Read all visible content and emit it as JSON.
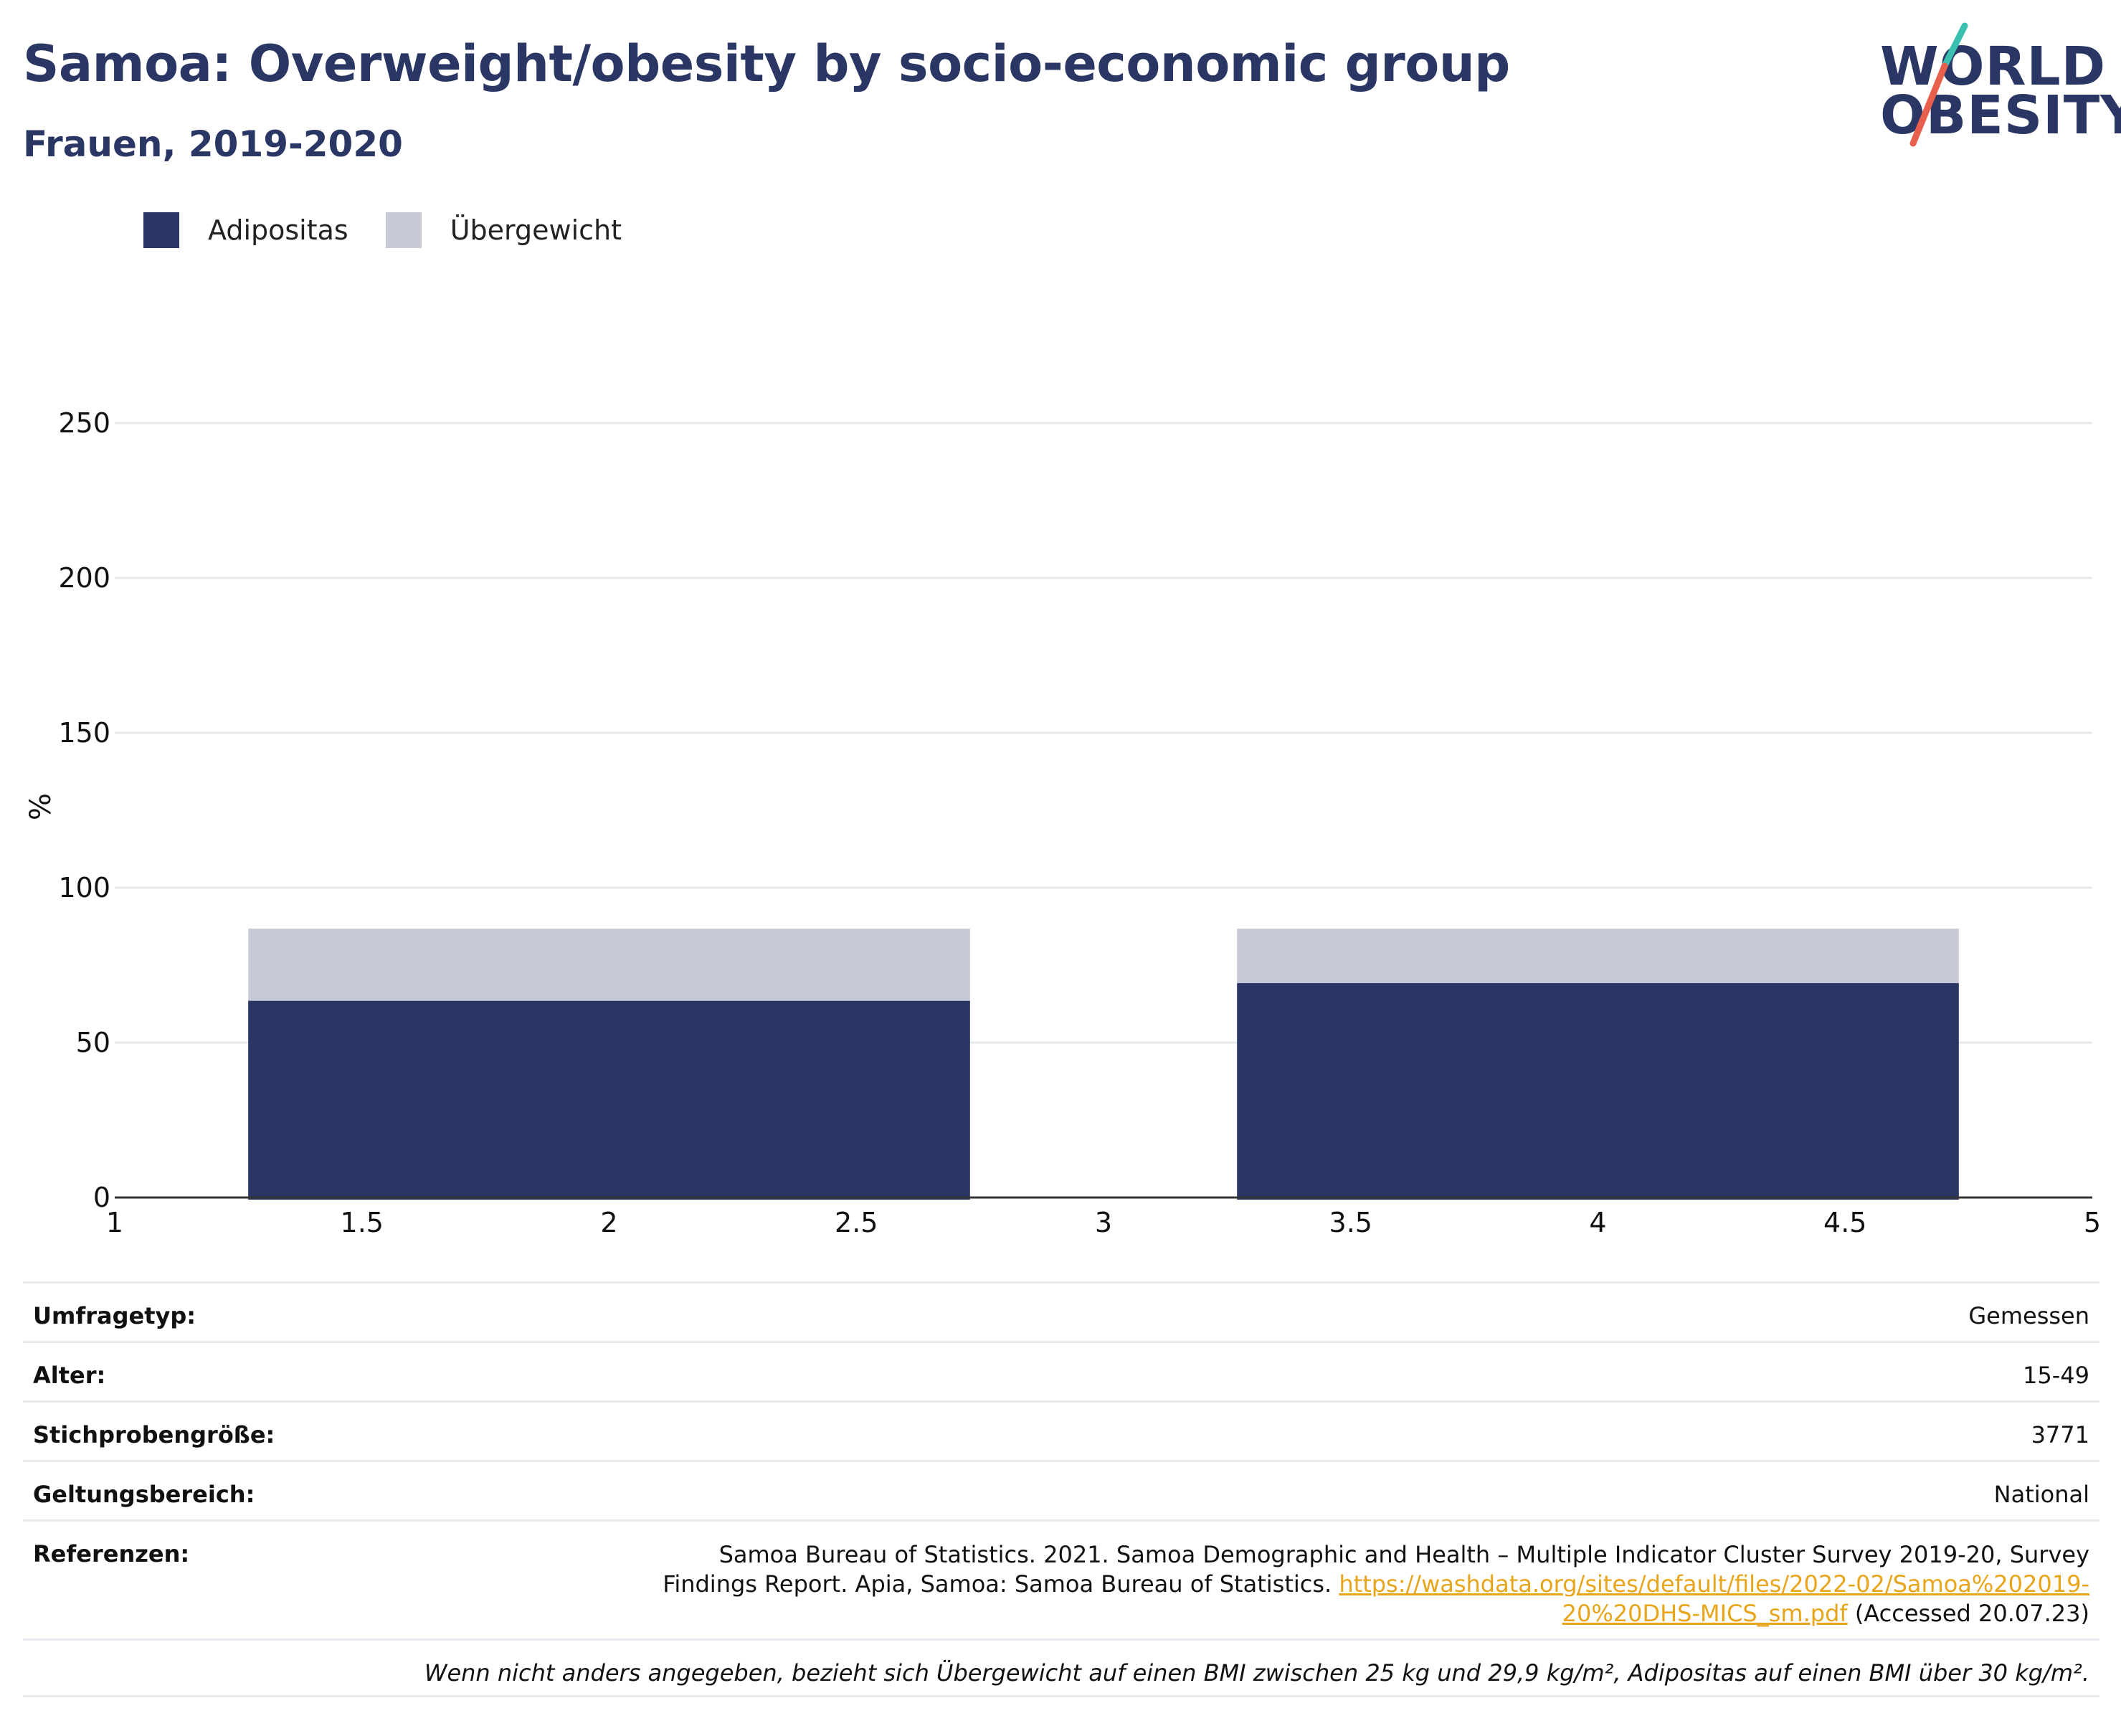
{
  "header": {
    "title": "Samoa: Overweight/obesity by socio-economic group",
    "subtitle": "Frauen, 2019-2020"
  },
  "logo": {
    "line1": "WORLD",
    "line2": "OBESITY",
    "slash_colors": [
      "#3bbfb0",
      "#e8604c"
    ]
  },
  "legend": [
    {
      "label": "Adipositas",
      "color": "#2a3663"
    },
    {
      "label": "Übergewicht",
      "color": "#c8cbd7"
    }
  ],
  "chart_data": {
    "type": "bar",
    "stacked": true,
    "xlim": [
      1,
      5
    ],
    "x_ticks": [
      "1",
      "1.5",
      "2",
      "2.5",
      "3",
      "3.5",
      "4",
      "4.5",
      "5"
    ],
    "ylim": [
      0,
      250
    ],
    "y_ticks": [
      "0",
      "50",
      "100",
      "150",
      "200",
      "250"
    ],
    "ylabel": "%",
    "bars": [
      {
        "x_start": 1.27,
        "x_end": 2.73,
        "adipositas": 63.5,
        "uebergewicht": 23.3
      },
      {
        "x_start": 3.27,
        "x_end": 4.73,
        "adipositas": 69.2,
        "uebergewicht": 17.6
      }
    ],
    "series": [
      {
        "name": "Adipositas",
        "color": "#2a3663"
      },
      {
        "name": "Übergewicht",
        "color": "#c8cbd7"
      }
    ],
    "grid": true
  },
  "meta": {
    "survey_type": {
      "key": "Umfragetyp:",
      "value": "Gemessen"
    },
    "age": {
      "key": "Alter:",
      "value": "15-49"
    },
    "sample_size": {
      "key": "Stichprobengröße:",
      "value": "3771"
    },
    "scope": {
      "key": "Geltungsbereich:",
      "value": "National"
    },
    "references": {
      "key": "Referenzen:",
      "text_before": "Samoa Bureau of Statistics. 2021. Samoa Demographic and Health – Multiple Indicator Cluster Survey 2019-20, Survey Findings Report. Apia, Samoa: Samoa Bureau of Statistics. ",
      "link": "https://washdata.org/sites/default/files/2022-02/Samoa%202019-20%20DHS-MICS_sm.pdf",
      "text_after": " (Accessed 20.07.23)"
    },
    "note": "Wenn nicht anders angegeben, bezieht sich Übergewicht auf einen BMI zwischen 25 kg und 29,9 kg/m², Adipositas auf einen BMI über 30 kg/m²."
  }
}
